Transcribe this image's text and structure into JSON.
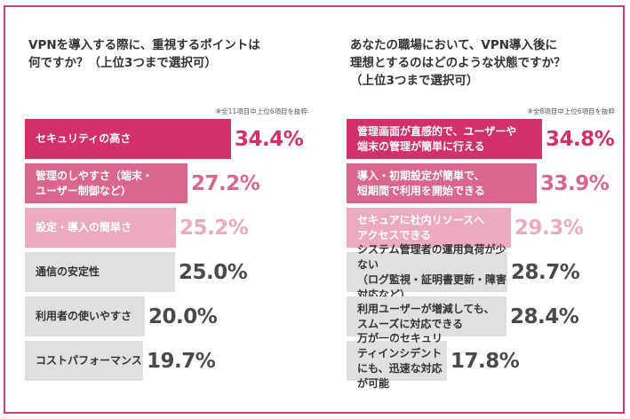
{
  "chart_data": [
    {
      "type": "bar",
      "orientation": "horizontal",
      "title": "VPNを導入する際に、重視するポイントは\n何ですか？（上位3つまで選択可）",
      "note": "※全11項目中上位6項目を抜粋",
      "categories": [
        "セキュリティの高さ",
        "管理のしやすさ（端末・\nユーザー制御など）",
        "設定・導入の簡単さ",
        "通信の安定性",
        "利用者の使いやすさ",
        "コストパフォーマンス"
      ],
      "values": [
        34.4,
        27.2,
        25.2,
        25.0,
        20.0,
        19.7
      ],
      "value_labels": [
        "34.4%",
        "27.2%",
        "25.2%",
        "25.0%",
        "20.0%",
        "19.7%"
      ],
      "bar_colors": [
        "#d1306a",
        "#d9668f",
        "#ecaac0",
        "#e0e0e0",
        "#e0e0e0",
        "#e0e0e0"
      ],
      "label_colors": [
        "#ffffff",
        "#ffffff",
        "#ffffff",
        "#333333",
        "#333333",
        "#333333"
      ],
      "value_colors": [
        "#d1306a",
        "#d9668f",
        "#ecaac0",
        "#4a4a4a",
        "#4a4a4a",
        "#4a4a4a"
      ]
    },
    {
      "type": "bar",
      "orientation": "horizontal",
      "title": "あなたの職場において、VPN導入後に\n理想とするのはどのような状態ですか？\n（上位3つまで選択可）",
      "note": "※全8項目中上位6項目を抜粋",
      "categories": [
        "管理画面が直感的で、ユーザーや\n端末の管理が簡単に行える",
        "導入・初期設定が簡単で、\n短期間で利用を開始できる",
        "セキュアに社内リソースへ\nアクセスできる",
        "システム管理者の運用負荷が少ない\n（ログ監視・証明書更新・障害対応など）",
        "利用ユーザーが増減しても、\nスムーズに対応できる",
        "万が一のセキュリティインシデント\nにも、迅速な対応が可能"
      ],
      "values": [
        34.8,
        33.9,
        29.3,
        28.7,
        28.4,
        17.8
      ],
      "value_labels": [
        "34.8%",
        "33.9%",
        "29.3%",
        "28.7%",
        "28.4%",
        "17.8%"
      ],
      "bar_colors": [
        "#d1306a",
        "#d9668f",
        "#ecaac0",
        "#e0e0e0",
        "#e0e0e0",
        "#e0e0e0"
      ],
      "label_colors": [
        "#ffffff",
        "#ffffff",
        "#ffffff",
        "#333333",
        "#333333",
        "#333333"
      ],
      "value_colors": [
        "#d1306a",
        "#d9668f",
        "#ecaac0",
        "#4a4a4a",
        "#4a4a4a",
        "#4a4a4a"
      ]
    }
  ]
}
